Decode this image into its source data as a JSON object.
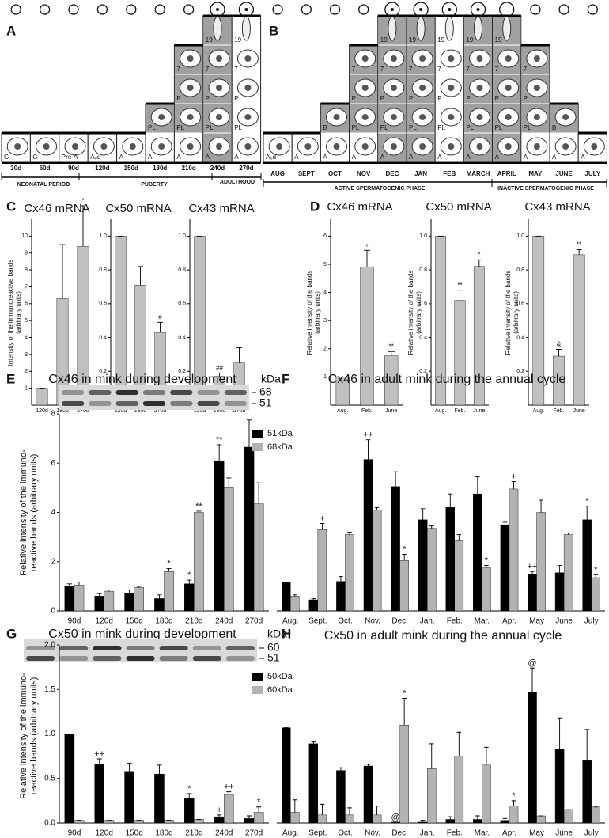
{
  "panel_labels": [
    "A",
    "B",
    "C",
    "D",
    "E",
    "F",
    "G",
    "H"
  ],
  "diagram_a": {
    "columns": [
      {
        "label": "30d",
        "cells": [
          "G"
        ]
      },
      {
        "label": "60d",
        "cells": [
          "G"
        ]
      },
      {
        "label": "90d",
        "cells": [
          "Pre-A"
        ]
      },
      {
        "label": "120d",
        "cells": [
          "A₀d"
        ]
      },
      {
        "label": "150d",
        "cells": [
          "A"
        ]
      },
      {
        "label": "180d",
        "cells": [
          "A",
          "PL"
        ]
      },
      {
        "label": "210d",
        "cells": [
          "A",
          "PL",
          "P",
          "7"
        ]
      },
      {
        "label": "240d",
        "cells": [
          "A",
          "PL",
          "P",
          "7",
          "19"
        ]
      },
      {
        "label": "270d",
        "cells": [
          "A",
          "PL",
          "P",
          "7",
          "19"
        ]
      }
    ],
    "periods": [
      "NEONATAL PERIOD",
      "PUBERTY",
      "ADULTHOOD"
    ]
  },
  "diagram_b": {
    "columns": [
      {
        "label": "AUG",
        "cells": [
          "A₀d"
        ]
      },
      {
        "label": "SEPT",
        "cells": [
          "A"
        ]
      },
      {
        "label": "OCT",
        "cells": [
          "A",
          "B"
        ]
      },
      {
        "label": "NOV",
        "cells": [
          "A",
          "PL",
          "P",
          "7"
        ]
      },
      {
        "label": "DEC",
        "cells": [
          "A",
          "PL",
          "P",
          "7",
          "19"
        ]
      },
      {
        "label": "JAN",
        "cells": [
          "A",
          "PL",
          "P",
          "7",
          "19"
        ]
      },
      {
        "label": "FEB",
        "cells": [
          "A",
          "PL",
          "P",
          "7",
          "19"
        ]
      },
      {
        "label": "MARCH",
        "cells": [
          "A",
          "PL",
          "P",
          "7",
          "19"
        ]
      },
      {
        "label": "APRIL",
        "cells": [
          "A",
          "PL",
          "P",
          "7",
          "19"
        ]
      },
      {
        "label": "MAY",
        "cells": [
          "A",
          "PL",
          "P",
          "7"
        ]
      },
      {
        "label": "JUNE",
        "cells": [
          "A",
          "B"
        ]
      },
      {
        "label": "JULY",
        "cells": [
          "A"
        ]
      }
    ],
    "phases": [
      "ACTIVE SPERMATOGENIC PHASE",
      "INACTIVE SPERMATOGENIC PHASE"
    ]
  },
  "chart_data": [
    {
      "type": "bar",
      "title": "Cx46 mRNA",
      "ylabel": [
        "Intensity of the immunoreactive bands",
        "(arbitrary units)"
      ],
      "categories": [
        "120d",
        "180d",
        "270d"
      ],
      "values": [
        1,
        6.3,
        9.4
      ],
      "errors": [
        0,
        3.2,
        2.4
      ],
      "annotations": [
        null,
        null,
        "*"
      ],
      "color": "#c0c0c0",
      "ylim": [
        0,
        11
      ],
      "yticks": [
        1,
        2,
        3,
        4,
        5,
        6,
        7,
        8,
        9,
        10
      ]
    },
    {
      "type": "bar",
      "title": "Cx50 mRNA",
      "categories": [
        "120d",
        "180d",
        "270d"
      ],
      "values": [
        1,
        0.71,
        0.43
      ],
      "errors": [
        0,
        0.11,
        0.06
      ],
      "annotations": [
        null,
        null,
        "#"
      ],
      "color": "#c0c0c0",
      "ylim": [
        0,
        1.1
      ],
      "yticks": [
        0.2,
        0.4,
        0.6,
        0.8,
        {
          "value": 1,
          "label": "1.0"
        }
      ]
    },
    {
      "type": "bar",
      "title": "Cx43 mRNA",
      "categories": [
        "120d",
        "180d",
        "270d"
      ],
      "values": [
        1,
        0.17,
        0.25
      ],
      "errors": [
        0,
        0.02,
        0.09
      ],
      "annotations": [
        null,
        "##",
        null
      ],
      "color": "#c0c0c0",
      "ylim": [
        0,
        1.1
      ],
      "yticks": [
        0.2,
        0.4,
        0.6,
        0.8,
        {
          "value": 1,
          "label": "1.0"
        }
      ]
    },
    {
      "type": "bar",
      "title": "Cx46 mRNA",
      "ylabel": [
        "Relative intensity of the bands",
        "(arbitrary units)"
      ],
      "categories": [
        "Aug.",
        "Feb.",
        "June"
      ],
      "values": [
        1,
        4.9,
        1.75
      ],
      "errors": [
        0,
        0.6,
        0.15
      ],
      "annotations": [
        null,
        "+",
        "**"
      ],
      "color": "#c0c0c0",
      "ylim": [
        0,
        6.6
      ],
      "yticks": [
        1,
        2,
        3,
        4,
        5,
        6
      ]
    },
    {
      "type": "bar",
      "title": "Cx50 mRNA",
      "ylabel": [
        "Relative intensity of the bands",
        "(arbitrary units)"
      ],
      "categories": [
        "Aug.",
        "Feb.",
        "June"
      ],
      "values": [
        1,
        0.62,
        0.82
      ],
      "errors": [
        0,
        0.06,
        0.04
      ],
      "annotations": [
        null,
        "**",
        "*"
      ],
      "color": "#c0c0c0",
      "ylim": [
        0,
        1.1
      ],
      "yticks": [
        0.2,
        0.4,
        0.6,
        0.8,
        {
          "value": 1,
          "label": "1.0"
        }
      ]
    },
    {
      "type": "bar",
      "title": "Cx43 mRNA",
      "ylabel": [
        "Relative intensity of the bands",
        "(arbitrary units)"
      ],
      "categories": [
        "Aug.",
        "Feb.",
        "June"
      ],
      "values": [
        1,
        0.29,
        0.89
      ],
      "errors": [
        0,
        0.04,
        0.03
      ],
      "annotations": [
        null,
        "&",
        "**"
      ],
      "color": "#c0c0c0",
      "ylim": [
        0,
        1.1
      ],
      "yticks": [
        0.2,
        0.4,
        0.6,
        0.8,
        {
          "value": 1,
          "label": "1.0"
        }
      ]
    },
    {
      "type": "bar",
      "title": "Cx46 in mink during development",
      "blot": {
        "unit": "kDa",
        "markers": [
          68,
          51
        ]
      },
      "ylabel": [
        "Relative intensity of the immuno-",
        "reactive bands (arbitrary units)"
      ],
      "categories": [
        "90d",
        "120d",
        "150d",
        "180d",
        "210d",
        "240d",
        "270d"
      ],
      "series": [
        {
          "name": "51kDa",
          "color": "#000000",
          "values": [
            1.0,
            0.6,
            0.7,
            0.5,
            1.1,
            6.1,
            6.65
          ],
          "errors": [
            0.1,
            0.1,
            0.15,
            0.15,
            0.15,
            0.65,
            1.1
          ],
          "annotations": [
            null,
            null,
            null,
            null,
            "*",
            "**",
            null
          ]
        },
        {
          "name": "68kDa",
          "color": "#b3b3b3",
          "values": [
            1.05,
            0.8,
            0.95,
            1.6,
            4.0,
            5.0,
            4.35
          ],
          "errors": [
            0.12,
            0.05,
            0.05,
            0.12,
            0.05,
            0.4,
            0.85
          ],
          "annotations": [
            null,
            null,
            null,
            "*",
            "**",
            null,
            null
          ]
        }
      ],
      "ylim": [
        0,
        8
      ],
      "yticks": [
        0,
        2,
        4,
        6,
        8
      ],
      "legend": "upper right"
    },
    {
      "type": "bar",
      "title": "Cx46 in adult mink during the annual cycle",
      "categories": [
        "Aug.",
        "Sept.",
        "Oct.",
        "Nov.",
        "Dec.",
        "Jan.",
        "Feb.",
        "Mar.",
        "Apr.",
        "May",
        "June",
        "July"
      ],
      "series": [
        {
          "color": "#000000",
          "values": [
            1.15,
            0.45,
            1.2,
            6.15,
            5.05,
            3.7,
            4.2,
            4.75,
            3.5,
            1.5,
            1.55,
            3.7
          ],
          "errors": [
            0,
            0.05,
            0.2,
            0.8,
            0.6,
            0.45,
            0.55,
            0.7,
            0.1,
            0.1,
            0.3,
            0.55
          ],
          "annotations": [
            null,
            null,
            null,
            "++",
            null,
            null,
            null,
            null,
            null,
            "++",
            null,
            "*"
          ]
        },
        {
          "color": "#b3b3b3",
          "values": [
            0.6,
            3.3,
            3.1,
            4.1,
            2.05,
            3.35,
            2.85,
            1.75,
            4.95,
            4.0,
            3.1,
            1.35
          ],
          "errors": [
            0.05,
            0.25,
            0.1,
            0.1,
            0.25,
            0.1,
            0.25,
            0.1,
            0.3,
            0.5,
            0.07,
            0.12
          ],
          "annotations": [
            null,
            "+",
            null,
            null,
            "*",
            null,
            null,
            "*",
            "+",
            null,
            null,
            "*"
          ]
        }
      ],
      "ylim": [
        0,
        8
      ]
    },
    {
      "type": "bar",
      "title": "Cx50 in mink during development",
      "blot": {
        "unit": "kDa",
        "markers": [
          60,
          51
        ]
      },
      "ylabel": [
        "Relative intensity of the immuno-",
        "reactive bands (arbitrary units)"
      ],
      "categories": [
        "90d",
        "120d",
        "150d",
        "180d",
        "210d",
        "240d",
        "270d"
      ],
      "series": [
        {
          "name": "50kDa",
          "color": "#000000",
          "values": [
            1.0,
            0.66,
            0.58,
            0.55,
            0.28,
            0.07,
            0.05
          ],
          "errors": [
            0,
            0.06,
            0.09,
            0.1,
            0.05,
            0.02,
            0.03
          ],
          "annotations": [
            null,
            "++",
            null,
            null,
            "*",
            "+",
            null
          ]
        },
        {
          "name": "60kDa",
          "color": "#b3b3b3",
          "values": [
            0.03,
            0.03,
            0.03,
            0.03,
            0.04,
            0.32,
            0.12
          ],
          "errors": [
            0,
            0,
            0,
            0,
            0,
            0.03,
            0.06
          ],
          "annotations": [
            null,
            null,
            null,
            null,
            null,
            "++",
            "*"
          ]
        }
      ],
      "ylim": [
        0,
        2
      ],
      "yticks": [
        {
          "value": 0,
          "label": "0.0"
        },
        {
          "value": 0.5,
          "label": "0.5"
        },
        {
          "value": 1,
          "label": "1.0"
        },
        {
          "value": 1.5,
          "label": "1.5"
        },
        {
          "value": 2,
          "label": "2.0"
        }
      ],
      "legend": "upper right"
    },
    {
      "type": "bar",
      "title": "Cx50 in adult mink during the annual cycle",
      "categories": [
        "Aug.",
        "Sept.",
        "Oct.",
        "Nov.",
        "Dec.",
        "Jan.",
        "Feb.",
        "Mar.",
        "Apr.",
        "May",
        "June",
        "July"
      ],
      "series": [
        {
          "color": "#000000",
          "values": [
            1.07,
            0.89,
            0.59,
            0.64,
            0.01,
            0.01,
            0.04,
            0.04,
            0.03,
            1.47,
            0.83,
            0.7
          ],
          "errors": [
            0,
            0.02,
            0.03,
            0.02,
            0,
            0.02,
            0.03,
            0.04,
            0.02,
            0.27,
            0.35,
            0.35
          ],
          "annotations": [
            null,
            null,
            null,
            null,
            "@",
            null,
            null,
            null,
            null,
            "@",
            null,
            null
          ]
        },
        {
          "color": "#b3b3b3",
          "values": [
            0.12,
            0.09,
            0.09,
            0.09,
            1.1,
            0.61,
            0.75,
            0.65,
            0.19,
            0.08,
            0.15,
            0.18
          ],
          "errors": [
            0.14,
            0.12,
            0.08,
            0.1,
            0.3,
            0.28,
            0.27,
            0.2,
            0.06,
            0,
            0,
            0
          ],
          "annotations": [
            null,
            null,
            null,
            null,
            "*",
            null,
            null,
            null,
            "*",
            null,
            null,
            null
          ]
        }
      ],
      "ylim": [
        0,
        2
      ]
    }
  ]
}
